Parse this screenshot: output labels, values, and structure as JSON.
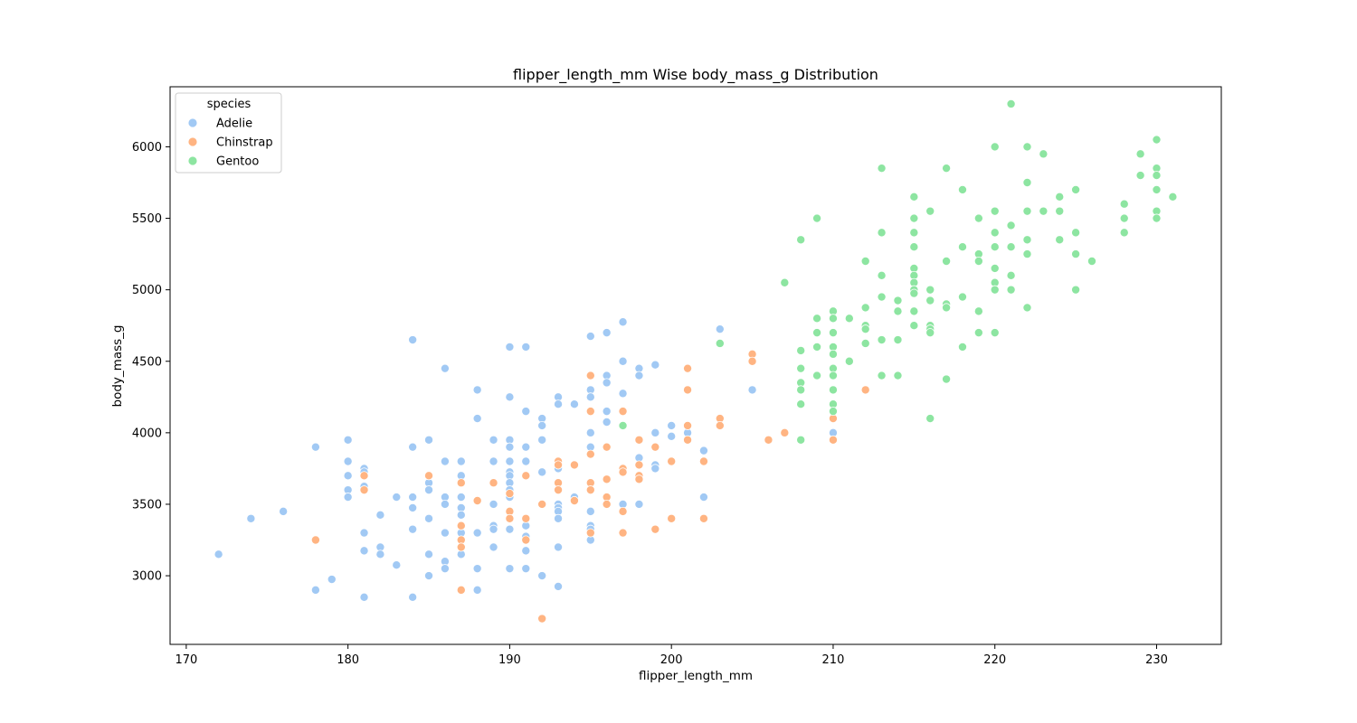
{
  "chart_data": {
    "type": "scatter",
    "title": "flipper_length_mm Wise body_mass_g Distribution",
    "xlabel": "flipper_length_mm",
    "ylabel": "body_mass_g",
    "xlim": [
      169,
      234
    ],
    "ylim": [
      2520,
      6420
    ],
    "x_ticks": [
      170,
      180,
      190,
      200,
      210,
      220,
      230
    ],
    "y_ticks": [
      3000,
      3500,
      4000,
      4500,
      5000,
      5500,
      6000
    ],
    "grid": false,
    "legend": {
      "title": "species",
      "placement": "top-left"
    },
    "series": [
      {
        "name": "Adelie",
        "color": "#a1c9f4",
        "points": [
          [
            172,
            3150
          ],
          [
            174,
            3400
          ],
          [
            176,
            3450
          ],
          [
            178,
            3900
          ],
          [
            178,
            2900
          ],
          [
            179,
            2975
          ],
          [
            180,
            3950
          ],
          [
            180,
            3800
          ],
          [
            180,
            3700
          ],
          [
            180,
            3600
          ],
          [
            180,
            3550
          ],
          [
            181,
            3750
          ],
          [
            181,
            3725
          ],
          [
            181,
            3625
          ],
          [
            181,
            3300
          ],
          [
            181,
            3175
          ],
          [
            181,
            2850
          ],
          [
            182,
            3425
          ],
          [
            182,
            3200
          ],
          [
            182,
            3150
          ],
          [
            183,
            3550
          ],
          [
            183,
            3075
          ],
          [
            184,
            4650
          ],
          [
            184,
            3900
          ],
          [
            184,
            3550
          ],
          [
            184,
            3475
          ],
          [
            184,
            3325
          ],
          [
            184,
            2850
          ],
          [
            185,
            3950
          ],
          [
            185,
            3650
          ],
          [
            185,
            3600
          ],
          [
            185,
            3400
          ],
          [
            185,
            3150
          ],
          [
            185,
            3000
          ],
          [
            186,
            4450
          ],
          [
            186,
            3800
          ],
          [
            186,
            3550
          ],
          [
            186,
            3500
          ],
          [
            186,
            3300
          ],
          [
            186,
            3100
          ],
          [
            186,
            3050
          ],
          [
            187,
            3800
          ],
          [
            187,
            3700
          ],
          [
            187,
            3550
          ],
          [
            187,
            3475
          ],
          [
            187,
            3425
          ],
          [
            187,
            3300
          ],
          [
            187,
            3150
          ],
          [
            188,
            4300
          ],
          [
            188,
            4100
          ],
          [
            188,
            3300
          ],
          [
            188,
            3050
          ],
          [
            188,
            2900
          ],
          [
            189,
            3950
          ],
          [
            189,
            3800
          ],
          [
            189,
            3650
          ],
          [
            189,
            3500
          ],
          [
            189,
            3350
          ],
          [
            189,
            3325
          ],
          [
            189,
            3200
          ],
          [
            190,
            4600
          ],
          [
            190,
            4250
          ],
          [
            190,
            3950
          ],
          [
            190,
            3900
          ],
          [
            190,
            3800
          ],
          [
            190,
            3725
          ],
          [
            190,
            3700
          ],
          [
            190,
            3650
          ],
          [
            190,
            3600
          ],
          [
            190,
            3550
          ],
          [
            190,
            3325
          ],
          [
            190,
            3050
          ],
          [
            191,
            4600
          ],
          [
            191,
            4150
          ],
          [
            191,
            3900
          ],
          [
            191,
            3800
          ],
          [
            191,
            3350
          ],
          [
            191,
            3275
          ],
          [
            191,
            3175
          ],
          [
            191,
            3050
          ],
          [
            192,
            4100
          ],
          [
            192,
            4050
          ],
          [
            192,
            3950
          ],
          [
            192,
            3725
          ],
          [
            192,
            3000
          ],
          [
            193,
            4250
          ],
          [
            193,
            4200
          ],
          [
            193,
            3750
          ],
          [
            193,
            3500
          ],
          [
            193,
            3475
          ],
          [
            193,
            3450
          ],
          [
            193,
            3400
          ],
          [
            193,
            3200
          ],
          [
            193,
            2925
          ],
          [
            194,
            4200
          ],
          [
            194,
            3550
          ],
          [
            194,
            3525
          ],
          [
            195,
            4675
          ],
          [
            195,
            4300
          ],
          [
            195,
            4250
          ],
          [
            195,
            4000
          ],
          [
            195,
            3900
          ],
          [
            195,
            3450
          ],
          [
            195,
            3350
          ],
          [
            195,
            3325
          ],
          [
            195,
            3250
          ],
          [
            196,
            4700
          ],
          [
            196,
            4400
          ],
          [
            196,
            4350
          ],
          [
            196,
            4150
          ],
          [
            196,
            4075
          ],
          [
            197,
            4775
          ],
          [
            197,
            4500
          ],
          [
            197,
            4275
          ],
          [
            197,
            3500
          ],
          [
            198,
            4450
          ],
          [
            198,
            4400
          ],
          [
            198,
            3825
          ],
          [
            198,
            3500
          ],
          [
            199,
            4475
          ],
          [
            199,
            4000
          ],
          [
            199,
            3775
          ],
          [
            199,
            3750
          ],
          [
            200,
            4050
          ],
          [
            200,
            3975
          ],
          [
            201,
            4000
          ],
          [
            202,
            3875
          ],
          [
            202,
            3550
          ],
          [
            203,
            4725
          ],
          [
            205,
            4300
          ],
          [
            210,
            4000
          ]
        ]
      },
      {
        "name": "Chinstrap",
        "color": "#ffb482",
        "points": [
          [
            178,
            3250
          ],
          [
            181,
            3700
          ],
          [
            181,
            3600
          ],
          [
            185,
            3700
          ],
          [
            187,
            3650
          ],
          [
            187,
            3350
          ],
          [
            187,
            3250
          ],
          [
            187,
            3200
          ],
          [
            187,
            2900
          ],
          [
            188,
            3525
          ],
          [
            189,
            3650
          ],
          [
            190,
            3575
          ],
          [
            190,
            3450
          ],
          [
            190,
            3400
          ],
          [
            191,
            3700
          ],
          [
            191,
            3400
          ],
          [
            191,
            3250
          ],
          [
            192,
            3500
          ],
          [
            192,
            2700
          ],
          [
            193,
            3800
          ],
          [
            193,
            3775
          ],
          [
            193,
            3650
          ],
          [
            193,
            3600
          ],
          [
            194,
            3775
          ],
          [
            194,
            3525
          ],
          [
            195,
            4400
          ],
          [
            195,
            4150
          ],
          [
            195,
            3850
          ],
          [
            195,
            3650
          ],
          [
            195,
            3600
          ],
          [
            195,
            3300
          ],
          [
            196,
            3900
          ],
          [
            196,
            3675
          ],
          [
            196,
            3550
          ],
          [
            196,
            3500
          ],
          [
            197,
            4150
          ],
          [
            197,
            3750
          ],
          [
            197,
            3725
          ],
          [
            197,
            3450
          ],
          [
            197,
            3300
          ],
          [
            198,
            3950
          ],
          [
            198,
            3775
          ],
          [
            198,
            3700
          ],
          [
            198,
            3675
          ],
          [
            199,
            3900
          ],
          [
            199,
            3325
          ],
          [
            200,
            3800
          ],
          [
            200,
            3400
          ],
          [
            201,
            4450
          ],
          [
            201,
            4300
          ],
          [
            201,
            4050
          ],
          [
            201,
            3950
          ],
          [
            202,
            3800
          ],
          [
            202,
            3400
          ],
          [
            203,
            4100
          ],
          [
            203,
            4050
          ],
          [
            205,
            4550
          ],
          [
            205,
            4500
          ],
          [
            206,
            3950
          ],
          [
            207,
            4000
          ],
          [
            210,
            4800
          ],
          [
            210,
            4100
          ],
          [
            210,
            3950
          ],
          [
            212,
            4300
          ]
        ]
      },
      {
        "name": "Gentoo",
        "color": "#8de5a1",
        "points": [
          [
            197,
            4050
          ],
          [
            203,
            4625
          ],
          [
            207,
            5050
          ],
          [
            208,
            5350
          ],
          [
            208,
            4575
          ],
          [
            208,
            4450
          ],
          [
            208,
            4350
          ],
          [
            208,
            4300
          ],
          [
            208,
            4200
          ],
          [
            208,
            3950
          ],
          [
            209,
            5500
          ],
          [
            209,
            4800
          ],
          [
            209,
            4700
          ],
          [
            209,
            4600
          ],
          [
            209,
            4400
          ],
          [
            210,
            4850
          ],
          [
            210,
            4800
          ],
          [
            210,
            4700
          ],
          [
            210,
            4600
          ],
          [
            210,
            4550
          ],
          [
            210,
            4450
          ],
          [
            210,
            4400
          ],
          [
            210,
            4300
          ],
          [
            210,
            4200
          ],
          [
            210,
            4150
          ],
          [
            211,
            4800
          ],
          [
            211,
            4500
          ],
          [
            212,
            5200
          ],
          [
            212,
            4875
          ],
          [
            212,
            4750
          ],
          [
            212,
            4725
          ],
          [
            212,
            4625
          ],
          [
            213,
            5850
          ],
          [
            213,
            5400
          ],
          [
            213,
            5100
          ],
          [
            213,
            4950
          ],
          [
            213,
            4650
          ],
          [
            213,
            4400
          ],
          [
            214,
            4925
          ],
          [
            214,
            4850
          ],
          [
            214,
            4650
          ],
          [
            214,
            4400
          ],
          [
            215,
            5650
          ],
          [
            215,
            5500
          ],
          [
            215,
            5400
          ],
          [
            215,
            5300
          ],
          [
            215,
            5150
          ],
          [
            215,
            5100
          ],
          [
            215,
            5050
          ],
          [
            215,
            5000
          ],
          [
            215,
            4975
          ],
          [
            215,
            4850
          ],
          [
            215,
            4750
          ],
          [
            216,
            5550
          ],
          [
            216,
            5000
          ],
          [
            216,
            4925
          ],
          [
            216,
            4750
          ],
          [
            216,
            4725
          ],
          [
            216,
            4700
          ],
          [
            216,
            4100
          ],
          [
            217,
            5850
          ],
          [
            217,
            5200
          ],
          [
            217,
            4900
          ],
          [
            217,
            4875
          ],
          [
            217,
            4375
          ],
          [
            218,
            5700
          ],
          [
            218,
            5300
          ],
          [
            218,
            4950
          ],
          [
            218,
            4600
          ],
          [
            219,
            5500
          ],
          [
            219,
            5250
          ],
          [
            219,
            5200
          ],
          [
            219,
            4850
          ],
          [
            219,
            4700
          ],
          [
            220,
            6000
          ],
          [
            220,
            5550
          ],
          [
            220,
            5400
          ],
          [
            220,
            5300
          ],
          [
            220,
            5150
          ],
          [
            220,
            5050
          ],
          [
            220,
            5000
          ],
          [
            220,
            4700
          ],
          [
            221,
            6300
          ],
          [
            221,
            5450
          ],
          [
            221,
            5300
          ],
          [
            221,
            5100
          ],
          [
            221,
            5000
          ],
          [
            222,
            6000
          ],
          [
            222,
            5750
          ],
          [
            222,
            5550
          ],
          [
            222,
            5350
          ],
          [
            222,
            5250
          ],
          [
            222,
            4875
          ],
          [
            223,
            5950
          ],
          [
            223,
            5550
          ],
          [
            224,
            5650
          ],
          [
            224,
            5550
          ],
          [
            224,
            5350
          ],
          [
            225,
            5700
          ],
          [
            225,
            5400
          ],
          [
            225,
            5250
          ],
          [
            225,
            5000
          ],
          [
            226,
            5200
          ],
          [
            228,
            5600
          ],
          [
            228,
            5500
          ],
          [
            228,
            5400
          ],
          [
            229,
            5950
          ],
          [
            229,
            5800
          ],
          [
            230,
            6050
          ],
          [
            230,
            5850
          ],
          [
            230,
            5800
          ],
          [
            230,
            5700
          ],
          [
            230,
            5550
          ],
          [
            230,
            5500
          ],
          [
            231,
            5650
          ]
        ]
      }
    ]
  }
}
